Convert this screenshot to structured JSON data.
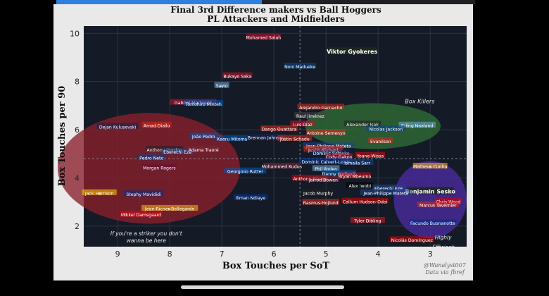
{
  "screen": {
    "progress": 0.49
  },
  "chart_data": {
    "type": "scatter",
    "title": "Final 3rd Difference makers vs Ball Hoggers",
    "subtitle": "PL Attackers and Midfielders",
    "xlabel": "Box Touches per SoT",
    "ylabel": "Box Touches per 90",
    "xlim": [
      9.65,
      2.3
    ],
    "ylim": [
      1.15,
      10.3
    ],
    "x_inverted": true,
    "grid": true,
    "xticks": [
      9,
      8,
      7,
      6,
      5,
      4,
      3
    ],
    "yticks": [
      2,
      4,
      6,
      8,
      10
    ],
    "ref_lines": {
      "x": 5.5,
      "y": 4.8
    },
    "colors": {
      "background": "#141b26",
      "grid": "#2b3446",
      "text": "#ffffff",
      "tick": "#d0d0d0"
    },
    "regions": [
      {
        "label": "If you're a striker you don't wanna be here",
        "cx": 8.4,
        "cy": 4.4,
        "rx": 1.75,
        "ry": 2.3,
        "color": "#8a1f2c"
      },
      {
        "label": "Box Killers",
        "cx": 4.1,
        "cy": 6.15,
        "rx": 1.3,
        "ry": 0.95,
        "color": "#2f6b34"
      },
      {
        "label": "Highly Efficient",
        "cx": 3.0,
        "cy": 3.1,
        "rx": 0.7,
        "ry": 1.6,
        "color": "#4b2aa0"
      }
    ],
    "points": [
      {
        "name": "Mohamed Salah",
        "x": 6.2,
        "y": 9.8,
        "club": "#c8102e"
      },
      {
        "name": "Viktor Gyokeres",
        "x": 4.5,
        "y": 9.2,
        "club": "#2d8a3e",
        "highlight": true
      },
      {
        "name": "Noni Madueke",
        "x": 5.5,
        "y": 8.6,
        "club": "#034694"
      },
      {
        "name": "Bukayo Saka",
        "x": 6.7,
        "y": 8.2,
        "club": "#c8102e"
      },
      {
        "name": "Savio",
        "x": 7.0,
        "y": 7.8,
        "club": "#6cabdd"
      },
      {
        "name": "Gabriel Martinelli",
        "x": 7.55,
        "y": 7.1,
        "club": "#c8102e"
      },
      {
        "name": "Tomohiro Minteh",
        "x": 7.35,
        "y": 7.05,
        "club": "#0057b8"
      },
      {
        "name": "Alejandro Garnacho",
        "x": 5.1,
        "y": 6.9,
        "club": "#da291c"
      },
      {
        "name": "Raul Jiménez",
        "x": 5.3,
        "y": 6.55,
        "club": "#444444"
      },
      {
        "name": "Box Killers",
        "x": 3.2,
        "y": 7.1,
        "label_only": true
      },
      {
        "name": "Dejan Kulusevski",
        "x": 9.0,
        "y": 6.1,
        "club": "#132257"
      },
      {
        "name": "Amad Diallo",
        "x": 8.25,
        "y": 6.15,
        "club": "#da291c"
      },
      {
        "name": "Luis Diaz",
        "x": 5.45,
        "y": 6.2,
        "club": "#c8102e"
      },
      {
        "name": "Dango Ouattara",
        "x": 5.9,
        "y": 6.0,
        "club": "#da291c"
      },
      {
        "name": "Alexander Isak",
        "x": 4.3,
        "y": 6.2,
        "club": "#241f20"
      },
      {
        "name": "Erling Haaland",
        "x": 3.25,
        "y": 6.15,
        "club": "#6cabdd"
      },
      {
        "name": "Nicolas Jackson",
        "x": 3.85,
        "y": 6.0,
        "club": "#034694"
      },
      {
        "name": "Antoine Semenyo",
        "x": 5.0,
        "y": 5.85,
        "club": "#da291c"
      },
      {
        "name": "João Pedro",
        "x": 7.35,
        "y": 5.7,
        "club": "#0057b8"
      },
      {
        "name": "Kaoru Mitoma",
        "x": 6.8,
        "y": 5.6,
        "club": "#0057b8"
      },
      {
        "name": "Brennan Johnson",
        "x": 6.15,
        "y": 5.65,
        "club": "#132257"
      },
      {
        "name": "Justin Schade",
        "x": 5.6,
        "y": 5.6,
        "club": "#da291c"
      },
      {
        "name": "Evanilson",
        "x": 3.95,
        "y": 5.5,
        "club": "#da291c"
      },
      {
        "name": "Jean-Philippe Mateta",
        "x": 4.95,
        "y": 5.3,
        "club": "#1b458f"
      },
      {
        "name": "Anthony Gordon",
        "x": 8.1,
        "y": 5.15,
        "club": "#241f20"
      },
      {
        "name": "Eberechi Eze",
        "x": 7.85,
        "y": 5.05,
        "club": "#1b458f"
      },
      {
        "name": "Adama Traoré",
        "x": 7.35,
        "y": 5.15,
        "club": "#7a263a"
      },
      {
        "name": "Liam Delap",
        "x": 4.95,
        "y": 5.1,
        "club": "#0044a9"
      },
      {
        "name": "Justin Kluivert",
        "x": 5.05,
        "y": 5.15,
        "club": "#da291c"
      },
      {
        "name": "Dominic Solanke",
        "x": 4.9,
        "y": 5.0,
        "club": "#132257"
      },
      {
        "name": "Cody Gakpo",
        "x": 4.75,
        "y": 4.85,
        "club": "#c8102e"
      },
      {
        "name": "Yoane Wissa",
        "x": 4.15,
        "y": 4.9,
        "club": "#e30613"
      },
      {
        "name": "Pedro Neto",
        "x": 8.35,
        "y": 4.8,
        "club": "#034694"
      },
      {
        "name": "Dominic Calvert-Lewin",
        "x": 5.0,
        "y": 4.65,
        "club": "#003399"
      },
      {
        "name": "Ismaila Sarr",
        "x": 4.4,
        "y": 4.6,
        "club": "#1b458f"
      },
      {
        "name": "Matheus Cunha",
        "x": 3.0,
        "y": 4.45,
        "club": "#fdb913"
      },
      {
        "name": "Morgan Rogers",
        "x": 8.2,
        "y": 4.4,
        "club": "#670e36"
      },
      {
        "name": "Mohammed Kudus",
        "x": 5.85,
        "y": 4.45,
        "club": "#7a263a"
      },
      {
        "name": "Phil Foden",
        "x": 5.0,
        "y": 4.35,
        "club": "#6cabdd"
      },
      {
        "name": "Georginio Rutter",
        "x": 6.55,
        "y": 4.25,
        "club": "#0057b8"
      },
      {
        "name": "Danny Welbeck",
        "x": 4.75,
        "y": 4.15,
        "club": "#0057b8"
      },
      {
        "name": "Bryan Mbeumo",
        "x": 4.45,
        "y": 4.05,
        "club": "#e30613"
      },
      {
        "name": "Anthony Elanga",
        "x": 5.3,
        "y": 3.95,
        "club": "#dd0000"
      },
      {
        "name": "Jarrod Bowen",
        "x": 5.05,
        "y": 3.9,
        "club": "#7a263a"
      },
      {
        "name": "Alex Iwobi",
        "x": 4.35,
        "y": 3.65,
        "club": "#000000"
      },
      {
        "name": "Eberechi Eze",
        "x": 3.8,
        "y": 3.55,
        "club": "#1b458f"
      },
      {
        "name": "Benjamin Sesko",
        "x": 3.0,
        "y": 3.4,
        "club": "#da291c",
        "highlight": true
      },
      {
        "name": "Jack Harrison",
        "x": 9.35,
        "y": 3.35,
        "club": "#ffcd00"
      },
      {
        "name": "Stephy Mavididi",
        "x": 8.5,
        "y": 3.3,
        "club": "#003090"
      },
      {
        "name": "Jacob Murphy",
        "x": 5.15,
        "y": 3.35,
        "club": "#241f20"
      },
      {
        "name": "Jean-Philippe Mateta",
        "x": 3.85,
        "y": 3.35,
        "club": "#1b458f"
      },
      {
        "name": "Iliman Ndiaye",
        "x": 6.45,
        "y": 3.15,
        "club": "#003399"
      },
      {
        "name": "Chris Wood",
        "x": 2.65,
        "y": 3.0,
        "club": "#dd0000"
      },
      {
        "name": "Rasmus Hojlund",
        "x": 5.1,
        "y": 2.95,
        "club": "#da291c"
      },
      {
        "name": "Callum Hudson-Odoi",
        "x": 4.25,
        "y": 3.0,
        "club": "#dd0000"
      },
      {
        "name": "Marcus Tavernier",
        "x": 2.85,
        "y": 2.85,
        "club": "#da291c"
      },
      {
        "name": "Jean-Ricner Bellegarde",
        "x": 8.0,
        "y": 2.7,
        "club": "#fdb913"
      },
      {
        "name": "Mikkel Damsgaard",
        "x": 8.55,
        "y": 2.45,
        "club": "#e30613"
      },
      {
        "name": "Tyler Dibling",
        "x": 4.2,
        "y": 2.2,
        "club": "#d71920"
      },
      {
        "name": "Facundo Buonanotte",
        "x": 2.95,
        "y": 2.1,
        "club": "#003090"
      },
      {
        "name": "Nicolás Domínguez",
        "x": 3.35,
        "y": 1.4,
        "club": "#dd0000"
      }
    ],
    "annotations": [
      {
        "text": "If you're a striker you don't",
        "x": 8.45,
        "y": 1.62
      },
      {
        "text": "wanna be here",
        "x": 8.45,
        "y": 1.32
      },
      {
        "text": "Highly",
        "x": 2.75,
        "y": 1.45
      },
      {
        "text": "Efficient",
        "x": 2.75,
        "y": 1.05
      }
    ],
    "credit": [
      "@Wanalyst007",
      "Data via fbref"
    ]
  }
}
